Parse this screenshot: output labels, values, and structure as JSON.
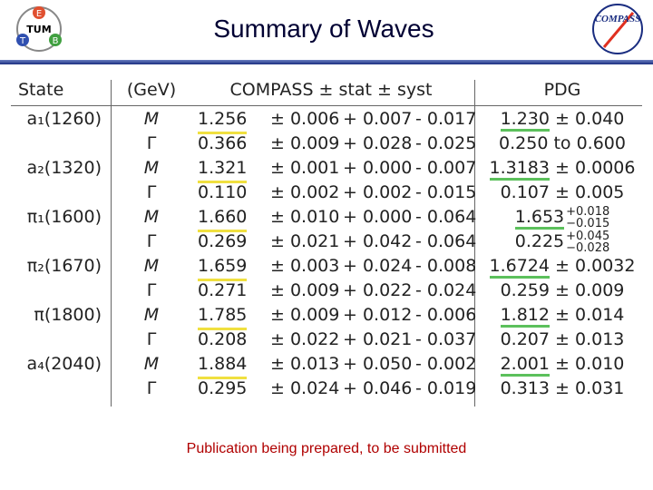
{
  "header": {
    "title": "Summary of Waves",
    "logo_left": {
      "text": "TUM",
      "letters": [
        "E",
        "T",
        "B"
      ]
    },
    "logo_right": {
      "text": "COMPASS"
    }
  },
  "table": {
    "columns": [
      "State",
      "(GeV)",
      "COMPASS ± stat ± syst",
      "PDG"
    ],
    "rows": [
      {
        "state": "a₁(1260)",
        "param": "M",
        "highlight": true,
        "compass": [
          "1.256",
          "± 0.006",
          "+ 0.007",
          "- 0.017"
        ],
        "pdg": [
          "1.230",
          "± 0.040"
        ]
      },
      {
        "state": null,
        "param": "Γ",
        "compass": [
          "0.366",
          "± 0.009",
          "+ 0.028",
          "- 0.025"
        ],
        "pdg": [
          "0.250",
          "to 0.600"
        ]
      },
      {
        "state": "a₂(1320)",
        "param": "M",
        "highlight": true,
        "compass": [
          "1.321",
          "± 0.001",
          "+ 0.000",
          "- 0.007"
        ],
        "pdg": [
          "1.3183",
          "± 0.0006"
        ]
      },
      {
        "state": null,
        "param": "Γ",
        "compass": [
          "0.110",
          "± 0.002",
          "+ 0.002",
          "- 0.015"
        ],
        "pdg": [
          "0.107",
          "± 0.005"
        ]
      },
      {
        "state": "π₁(1600)",
        "param": "M",
        "highlight": true,
        "compass": [
          "1.660",
          "± 0.010",
          "+ 0.000",
          "- 0.064"
        ],
        "pdg": [
          "1.653",
          "+0.018",
          "−0.015"
        ],
        "asym": true
      },
      {
        "state": null,
        "param": "Γ",
        "compass": [
          "0.269",
          "± 0.021",
          "+ 0.042",
          "- 0.064"
        ],
        "pdg": [
          "0.225",
          "+0.045",
          "−0.028"
        ],
        "asym": true
      },
      {
        "state": "π₂(1670)",
        "param": "M",
        "highlight": true,
        "compass": [
          "1.659",
          "± 0.003",
          "+ 0.024",
          "- 0.008"
        ],
        "pdg": [
          "1.6724",
          "± 0.0032"
        ]
      },
      {
        "state": null,
        "param": "Γ",
        "compass": [
          "0.271",
          "± 0.009",
          "+ 0.022",
          "- 0.024"
        ],
        "pdg": [
          "0.259",
          "± 0.009"
        ]
      },
      {
        "state": "π(1800)",
        "param": "M",
        "highlight": true,
        "compass": [
          "1.785",
          "± 0.009",
          "+ 0.012",
          "- 0.006"
        ],
        "pdg": [
          "1.812",
          "± 0.014"
        ]
      },
      {
        "state": null,
        "param": "Γ",
        "compass": [
          "0.208",
          "± 0.022",
          "+ 0.021",
          "- 0.037"
        ],
        "pdg": [
          "0.207",
          "± 0.013"
        ]
      },
      {
        "state": "a₄(2040)",
        "param": "M",
        "highlight": true,
        "compass": [
          "1.884",
          "± 0.013",
          "+ 0.050",
          "- 0.002"
        ],
        "pdg": [
          "2.001",
          "± 0.010"
        ]
      },
      {
        "state": null,
        "param": "Γ",
        "compass": [
          "0.295",
          "± 0.024",
          "+ 0.046",
          "- 0.019"
        ],
        "pdg": [
          "0.313",
          "± 0.031"
        ]
      }
    ]
  },
  "footer": {
    "note": "Publication being prepared, to be submitted"
  }
}
